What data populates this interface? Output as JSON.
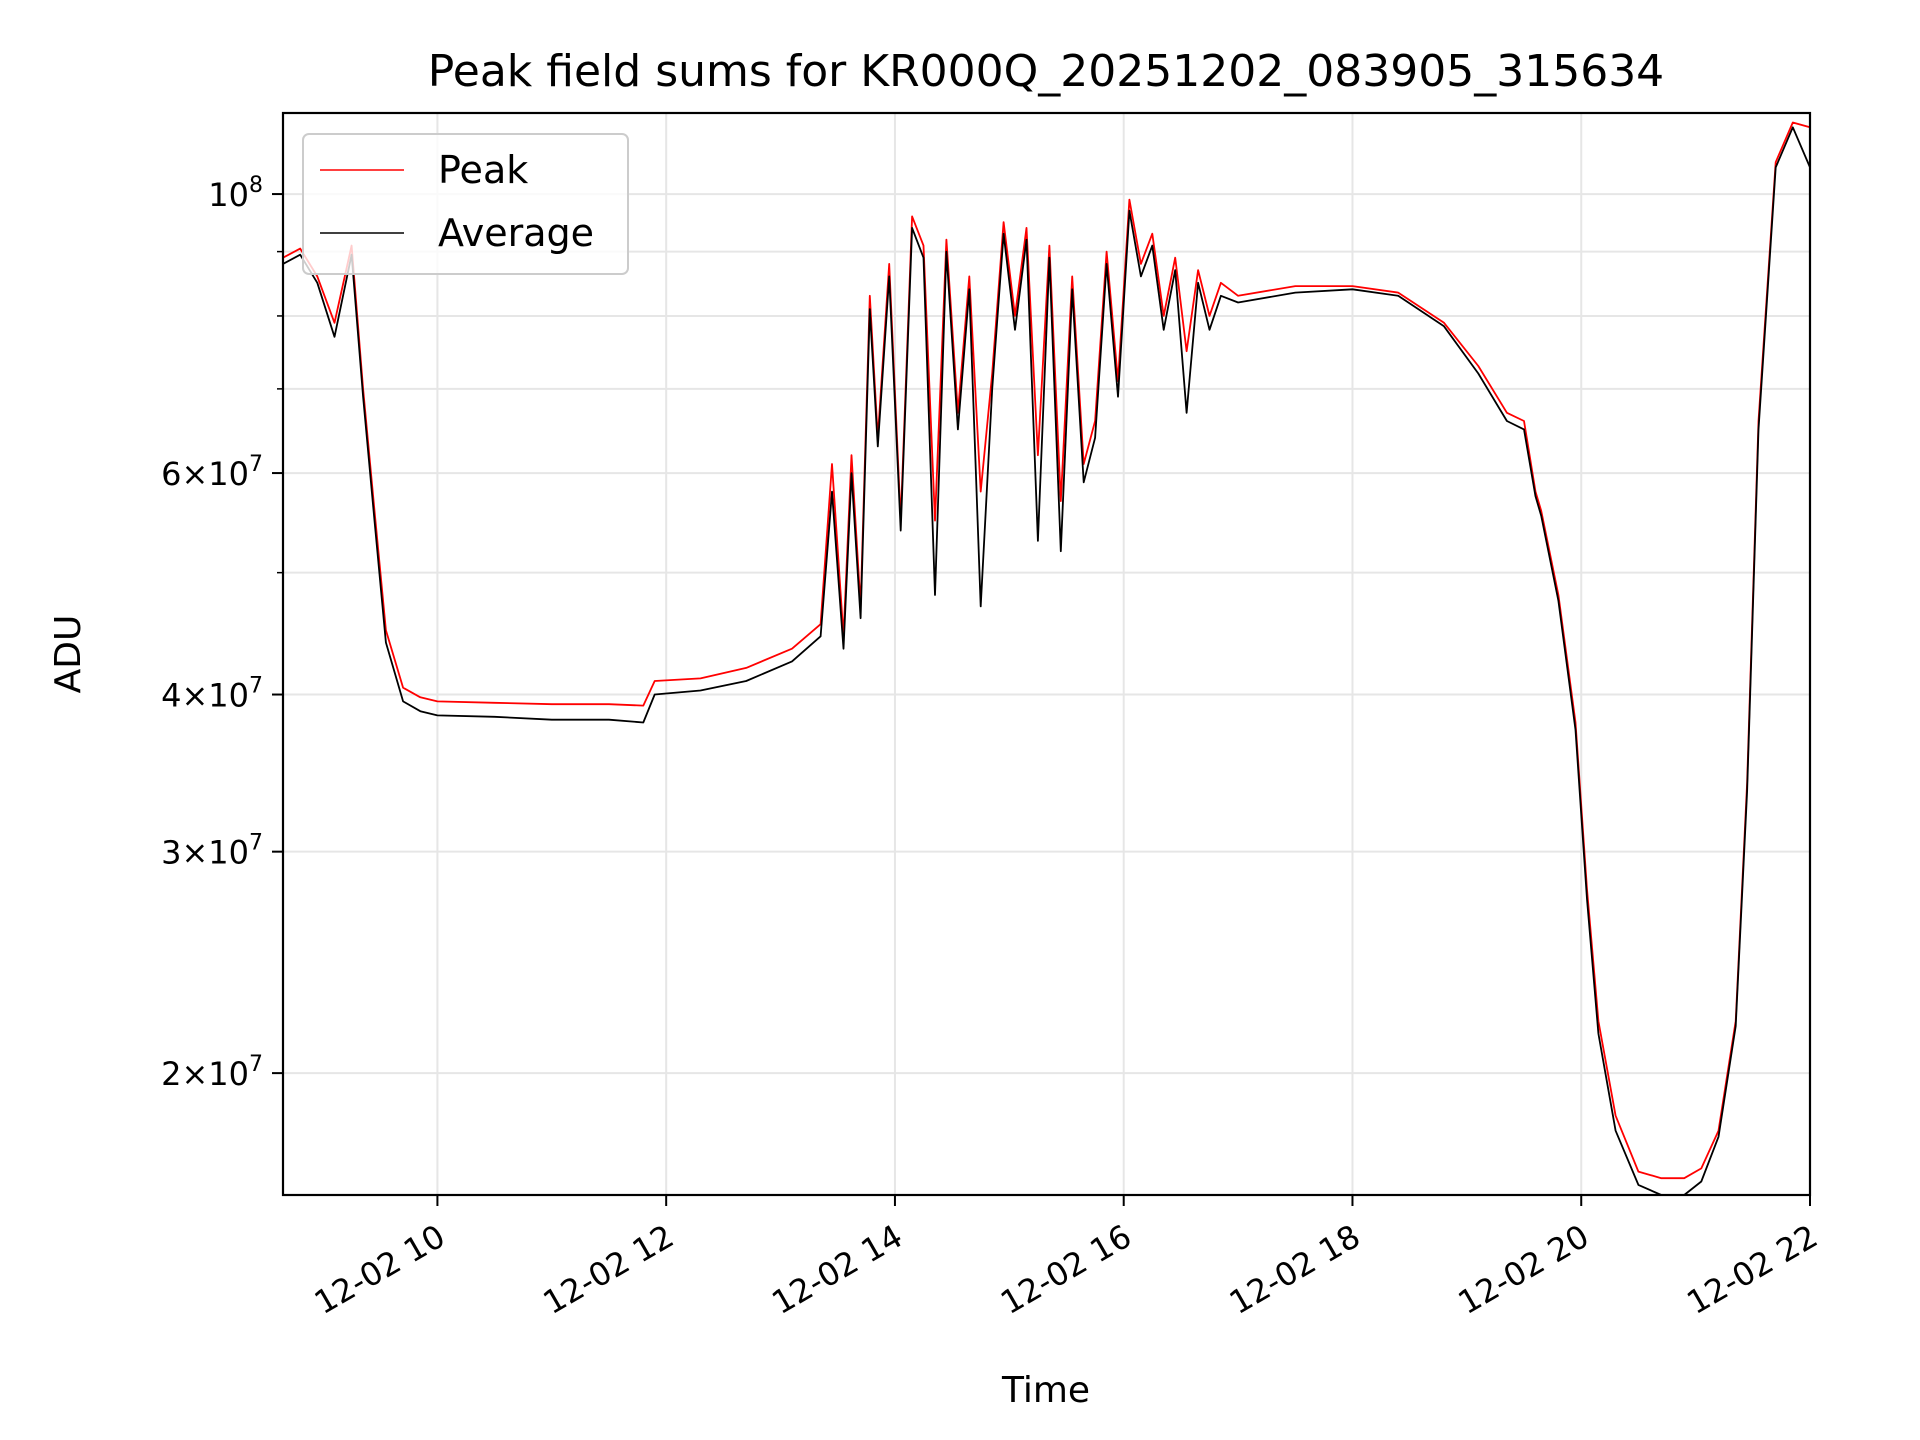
{
  "chart_data": {
    "type": "line",
    "title": "Peak field sums for KR000Q_20251202_083905_315634",
    "xlabel": "Time",
    "ylabel": "ADU",
    "yscale": "log",
    "xlim": [
      8.65,
      22.0
    ],
    "ylim": [
      16000000,
      116000000
    ],
    "grid": true,
    "legend_position": "top-left",
    "x_ticks": [
      {
        "value": 10,
        "label": "12-02 10"
      },
      {
        "value": 12,
        "label": "12-02 12"
      },
      {
        "value": 14,
        "label": "12-02 14"
      },
      {
        "value": 16,
        "label": "12-02 16"
      },
      {
        "value": 18,
        "label": "12-02 18"
      },
      {
        "value": 20,
        "label": "12-02 20"
      },
      {
        "value": 22,
        "label": "12-02 22"
      }
    ],
    "y_ticks": [
      {
        "value": 20000000,
        "mant": "2",
        "exp": "7"
      },
      {
        "value": 30000000,
        "mant": "3",
        "exp": "7"
      },
      {
        "value": 40000000,
        "mant": "4",
        "exp": "7"
      },
      {
        "value": 60000000,
        "mant": "6",
        "exp": "7"
      },
      {
        "value": 100000000,
        "mant": "",
        "exp": "8"
      }
    ],
    "y_minor_ticks": [
      50000000,
      70000000,
      80000000,
      90000000
    ],
    "series": [
      {
        "name": "Peak",
        "color": "#ff0000",
        "x": [
          8.65,
          8.8,
          8.95,
          9.1,
          9.25,
          9.35,
          9.45,
          9.55,
          9.7,
          9.85,
          10.0,
          10.5,
          11.0,
          11.5,
          11.8,
          11.9,
          12.3,
          12.7,
          13.1,
          13.35,
          13.45,
          13.55,
          13.62,
          13.7,
          13.78,
          13.85,
          13.95,
          14.05,
          14.15,
          14.25,
          14.35,
          14.45,
          14.55,
          14.65,
          14.75,
          14.85,
          14.95,
          15.05,
          15.15,
          15.25,
          15.35,
          15.45,
          15.55,
          15.65,
          15.75,
          15.85,
          15.95,
          16.05,
          16.15,
          16.25,
          16.35,
          16.45,
          16.55,
          16.65,
          16.75,
          16.85,
          17.0,
          17.5,
          18.0,
          18.4,
          18.8,
          19.1,
          19.35,
          19.5,
          19.6,
          19.65,
          19.8,
          19.95,
          20.05,
          20.15,
          20.3,
          20.5,
          20.7,
          20.9,
          21.05,
          21.2,
          21.35,
          21.45,
          21.55,
          21.7,
          21.85,
          22.0
        ],
        "y": [
          89000000,
          90500000,
          86000000,
          79000000,
          91000000,
          70000000,
          56000000,
          45000000,
          40500000,
          39800000,
          39500000,
          39400000,
          39300000,
          39300000,
          39200000,
          41000000,
          41200000,
          42000000,
          43500000,
          45500000,
          61000000,
          44500000,
          62000000,
          47000000,
          83000000,
          64000000,
          88000000,
          55000000,
          96000000,
          91000000,
          55000000,
          92000000,
          67000000,
          86000000,
          58000000,
          72000000,
          95000000,
          80000000,
          94000000,
          62000000,
          91000000,
          57000000,
          86000000,
          61000000,
          66000000,
          90000000,
          71000000,
          99000000,
          88000000,
          93000000,
          80000000,
          89000000,
          75000000,
          87000000,
          80000000,
          85000000,
          83000000,
          84500000,
          84500000,
          83500000,
          79000000,
          73000000,
          67000000,
          66000000,
          58000000,
          56000000,
          48000000,
          38000000,
          28000000,
          22000000,
          18500000,
          16700000,
          16500000,
          16500000,
          16800000,
          18000000,
          22000000,
          34000000,
          66000000,
          106000000,
          114000000,
          113000000
        ]
      },
      {
        "name": "Average",
        "color": "#000000",
        "x": [
          8.65,
          8.8,
          8.95,
          9.1,
          9.25,
          9.35,
          9.45,
          9.55,
          9.7,
          9.85,
          10.0,
          10.5,
          11.0,
          11.5,
          11.8,
          11.9,
          12.3,
          12.7,
          13.1,
          13.35,
          13.45,
          13.55,
          13.62,
          13.7,
          13.78,
          13.85,
          13.95,
          14.05,
          14.15,
          14.25,
          14.35,
          14.45,
          14.55,
          14.65,
          14.75,
          14.85,
          14.95,
          15.05,
          15.15,
          15.25,
          15.35,
          15.45,
          15.55,
          15.65,
          15.75,
          15.85,
          15.95,
          16.05,
          16.15,
          16.25,
          16.35,
          16.45,
          16.55,
          16.65,
          16.75,
          16.85,
          17.0,
          17.5,
          18.0,
          18.4,
          18.8,
          19.1,
          19.35,
          19.5,
          19.6,
          19.65,
          19.8,
          19.95,
          20.05,
          20.15,
          20.3,
          20.5,
          20.7,
          20.9,
          21.05,
          21.2,
          21.35,
          21.45,
          21.55,
          21.7,
          21.85,
          22.0
        ],
        "y": [
          88000000,
          89500000,
          85000000,
          77000000,
          89500000,
          69000000,
          55000000,
          44000000,
          39500000,
          38800000,
          38500000,
          38400000,
          38200000,
          38200000,
          38000000,
          40000000,
          40300000,
          41000000,
          42500000,
          44500000,
          58000000,
          43500000,
          60000000,
          46000000,
          81000000,
          63000000,
          86000000,
          54000000,
          94000000,
          89000000,
          48000000,
          90000000,
          65000000,
          84000000,
          47000000,
          70000000,
          93000000,
          78000000,
          92000000,
          53000000,
          89000000,
          52000000,
          84000000,
          59000000,
          64000000,
          88000000,
          69000000,
          97000000,
          86000000,
          91000000,
          78000000,
          87000000,
          67000000,
          85000000,
          78000000,
          83000000,
          82000000,
          83500000,
          84000000,
          83000000,
          78500000,
          72000000,
          66000000,
          65000000,
          57500000,
          55500000,
          47500000,
          37500000,
          27500000,
          21500000,
          18000000,
          16300000,
          16000000,
          16000000,
          16400000,
          17800000,
          21800000,
          33500000,
          65000000,
          105000000,
          113000000,
          105000000
        ]
      }
    ]
  }
}
